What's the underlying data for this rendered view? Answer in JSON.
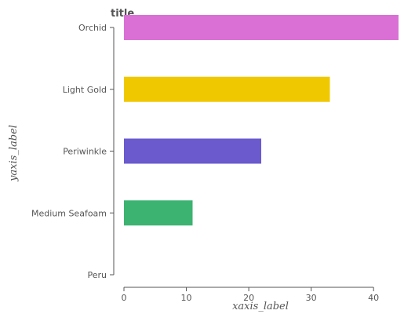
{
  "chart_data": {
    "type": "bar",
    "orientation": "horizontal",
    "title": "title",
    "xlabel": "xaxis_label",
    "ylabel": "yaxis_label",
    "categories": [
      "Peru",
      "Medium Seafoam",
      "Periwinkle",
      "Light Gold",
      "Orchid"
    ],
    "values": [
      0,
      11,
      22,
      33,
      44
    ],
    "colors": [
      "#cd853f",
      "#3cb371",
      "#6a5acd",
      "#f0c800",
      "#da70d6"
    ],
    "xlim": [
      0,
      44
    ],
    "xticks": [
      0,
      10,
      20,
      30,
      40
    ],
    "grid": false,
    "legend": "none"
  }
}
